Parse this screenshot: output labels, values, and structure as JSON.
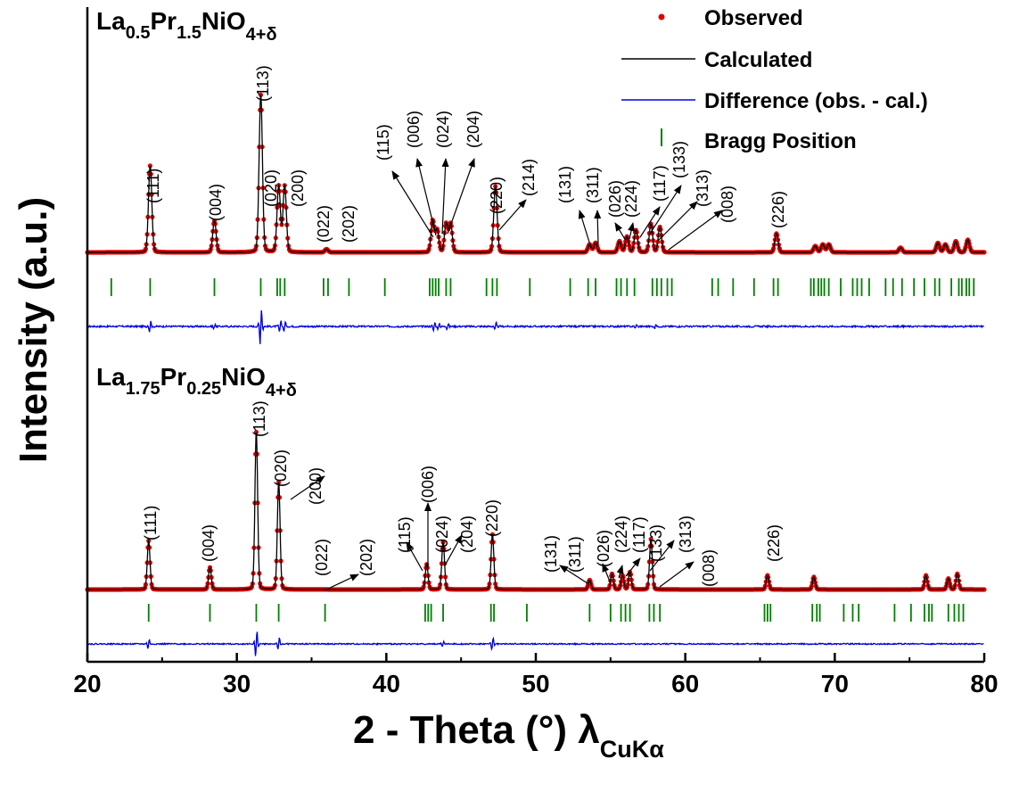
{
  "chart_data": {
    "type": "line",
    "x_range": [
      20,
      80
    ],
    "x_ticks": [
      20,
      30,
      40,
      50,
      60,
      70,
      80
    ],
    "xlabel": {
      "main": "2 - Theta (°) λ",
      "sub": "CuKα"
    },
    "ylabel": "Intensity (a.u.)",
    "y_ticks_shown": false,
    "grid": false,
    "legend": {
      "position": "top-right",
      "entries": [
        {
          "label": "Observed",
          "marker": "dot",
          "color": "#e00000"
        },
        {
          "label": "Calculated",
          "marker": "line",
          "color": "#000000"
        },
        {
          "label": "Difference (obs. - cal.)",
          "marker": "line",
          "color": "#0000dd"
        },
        {
          "label": "Bragg Position",
          "marker": "tick",
          "color": "#008000"
        }
      ]
    },
    "panels": [
      {
        "composition": [
          {
            "text": "La",
            "sub": "0.5"
          },
          {
            "text": "Pr",
            "sub": "1.5"
          },
          {
            "text": "NiO",
            "sub": "4+δ"
          }
        ],
        "peaks": [
          {
            "x": 24.2,
            "h": 0.55
          },
          {
            "x": 28.5,
            "h": 0.2
          },
          {
            "x": 31.6,
            "h": 1.0
          },
          {
            "x": 32.8,
            "h": 0.42
          },
          {
            "x": 33.2,
            "h": 0.42
          },
          {
            "x": 36.0,
            "h": 0.02
          },
          {
            "x": 43.1,
            "h": 0.2
          },
          {
            "x": 43.4,
            "h": 0.14
          },
          {
            "x": 44.0,
            "h": 0.18
          },
          {
            "x": 44.3,
            "h": 0.18
          },
          {
            "x": 47.3,
            "h": 0.42
          },
          {
            "x": 53.6,
            "h": 0.05
          },
          {
            "x": 54.0,
            "h": 0.06
          },
          {
            "x": 55.6,
            "h": 0.07
          },
          {
            "x": 56.1,
            "h": 0.1
          },
          {
            "x": 56.7,
            "h": 0.14
          },
          {
            "x": 57.7,
            "h": 0.18
          },
          {
            "x": 58.3,
            "h": 0.16
          },
          {
            "x": 66.1,
            "h": 0.12
          },
          {
            "x": 68.7,
            "h": 0.04
          },
          {
            "x": 69.2,
            "h": 0.05
          },
          {
            "x": 69.6,
            "h": 0.05
          },
          {
            "x": 74.4,
            "h": 0.03
          },
          {
            "x": 76.9,
            "h": 0.06
          },
          {
            "x": 77.4,
            "h": 0.05
          },
          {
            "x": 78.1,
            "h": 0.07
          },
          {
            "x": 78.9,
            "h": 0.08
          }
        ],
        "bragg_positions": [
          21.6,
          24.2,
          28.5,
          31.6,
          32.7,
          32.9,
          33.2,
          35.8,
          36.1,
          37.5,
          39.9,
          42.9,
          43.1,
          43.3,
          43.5,
          44.0,
          44.3,
          46.7,
          47.1,
          47.4,
          49.6,
          52.3,
          53.5,
          54.0,
          55.4,
          55.7,
          56.1,
          56.6,
          57.8,
          58.1,
          58.4,
          58.8,
          59.1,
          61.8,
          62.2,
          63.2,
          64.6,
          65.9,
          66.2,
          68.4,
          68.6,
          68.9,
          69.1,
          69.3,
          69.6,
          70.4,
          71.2,
          71.5,
          71.8,
          72.3,
          73.4,
          73.9,
          74.5,
          75.3,
          76.0,
          76.7,
          77.0,
          77.8,
          78.3,
          78.5,
          78.8,
          79.0,
          79.3
        ],
        "difference_spikes": [
          {
            "x": 24.2,
            "a": 0.3
          },
          {
            "x": 28.5,
            "a": 0.15
          },
          {
            "x": 31.6,
            "a": 1.0
          },
          {
            "x": 32.9,
            "a": 0.35
          },
          {
            "x": 33.2,
            "a": 0.3
          },
          {
            "x": 43.2,
            "a": 0.25
          },
          {
            "x": 43.5,
            "a": 0.2
          },
          {
            "x": 44.1,
            "a": 0.15
          },
          {
            "x": 47.3,
            "a": 0.2
          },
          {
            "x": 56.7,
            "a": 0.12
          },
          {
            "x": 58.0,
            "a": 0.12
          }
        ],
        "hkl_labels": [
          "(111)",
          "(004)",
          "(113)",
          "(020)",
          "(200)",
          "(022)",
          "(202)",
          "(115)",
          "(006)",
          "(024)",
          "(204)",
          "(220)",
          "(214)",
          "(131)",
          "(311)",
          "(026)",
          "(224)",
          "(117)",
          "(133)",
          "(313)",
          "(008)",
          "(226)"
        ]
      },
      {
        "composition": [
          {
            "text": "La",
            "sub": "1.75"
          },
          {
            "text": "Pr",
            "sub": "0.25"
          },
          {
            "text": "NiO",
            "sub": "4+δ"
          }
        ],
        "peaks": [
          {
            "x": 24.1,
            "h": 0.31
          },
          {
            "x": 28.2,
            "h": 0.14
          },
          {
            "x": 31.3,
            "h": 1.0
          },
          {
            "x": 32.8,
            "h": 0.68
          },
          {
            "x": 42.7,
            "h": 0.16
          },
          {
            "x": 43.8,
            "h": 0.3
          },
          {
            "x": 47.1,
            "h": 0.35
          },
          {
            "x": 53.6,
            "h": 0.06
          },
          {
            "x": 55.1,
            "h": 0.1
          },
          {
            "x": 55.8,
            "h": 0.09
          },
          {
            "x": 56.3,
            "h": 0.11
          },
          {
            "x": 57.7,
            "h": 0.32
          },
          {
            "x": 65.5,
            "h": 0.09
          },
          {
            "x": 68.6,
            "h": 0.08
          },
          {
            "x": 76.1,
            "h": 0.09
          },
          {
            "x": 77.6,
            "h": 0.07
          },
          {
            "x": 78.2,
            "h": 0.1
          }
        ],
        "bragg_positions": [
          24.1,
          28.2,
          31.3,
          32.8,
          35.9,
          42.6,
          42.8,
          43.0,
          43.8,
          47.0,
          47.2,
          49.4,
          53.6,
          55.0,
          55.7,
          56.0,
          56.3,
          57.6,
          57.9,
          58.3,
          65.3,
          65.5,
          65.7,
          68.5,
          68.8,
          69.0,
          70.6,
          71.2,
          71.6,
          74.0,
          75.1,
          76.0,
          76.3,
          76.5,
          77.6,
          78.0,
          78.3,
          78.6
        ],
        "difference_spikes": [
          {
            "x": 24.1,
            "a": 0.35
          },
          {
            "x": 31.3,
            "a": 1.0
          },
          {
            "x": 32.8,
            "a": 0.45
          },
          {
            "x": 47.1,
            "a": 0.45
          },
          {
            "x": 43.8,
            "a": 0.2
          }
        ],
        "hkl_labels": [
          "(111)",
          "(004)",
          "(113)",
          "(020)",
          "(200)",
          "(022)",
          "(202)",
          "(115)",
          "(006)",
          "(024)",
          "(204)",
          "(220)",
          "(131)",
          "(311)",
          "(026)",
          "(224)",
          "(117)",
          "(133)",
          "(313)",
          "(008)",
          "(226)"
        ]
      }
    ]
  }
}
